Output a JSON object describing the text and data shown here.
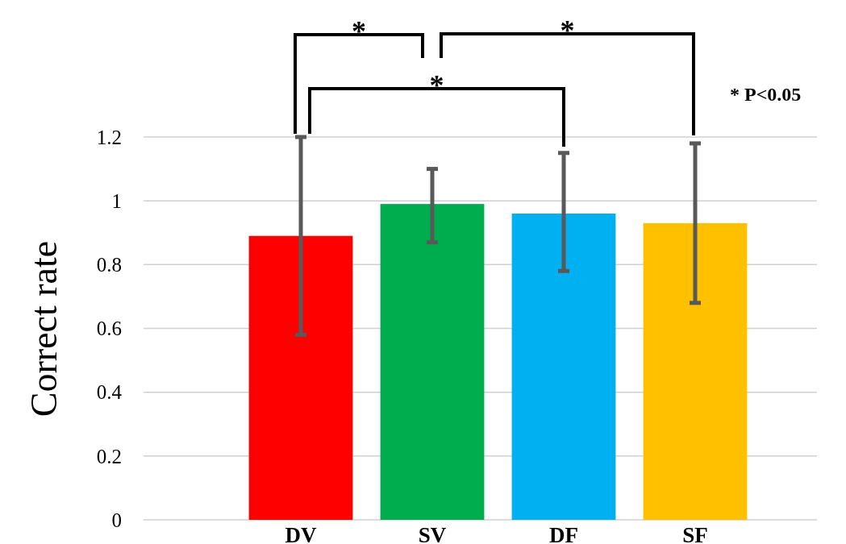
{
  "chart_data": {
    "type": "bar",
    "ylabel": "Correct rate",
    "categories": [
      "DV",
      "SV",
      "DF",
      "SF"
    ],
    "values": [
      0.89,
      0.99,
      0.96,
      0.93
    ],
    "colors": [
      "#ff0000",
      "#00ad4e",
      "#00b0f0",
      "#ffc000"
    ],
    "errors": [
      [
        0.58,
        1.2
      ],
      [
        0.87,
        1.1
      ],
      [
        0.78,
        1.15
      ],
      [
        0.68,
        1.18
      ]
    ],
    "ylim": [
      0,
      1.2
    ],
    "yticks": [
      0,
      0.2,
      0.4,
      0.6,
      0.8,
      1,
      1.2
    ],
    "grid": "y",
    "annotations": [
      "*",
      "*",
      "*",
      "* P<0.05"
    ]
  }
}
